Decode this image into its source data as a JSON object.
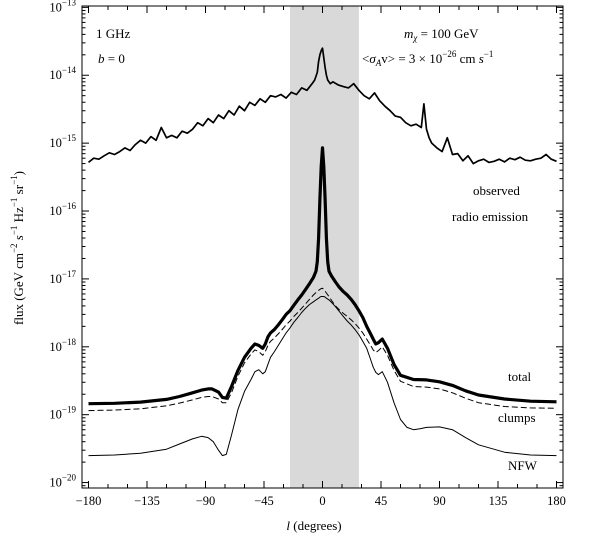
{
  "chart_data": {
    "type": "line",
    "xlabel_var": "l",
    "xlabel_unit": " (degrees)",
    "ylabel_a": "flux  (GeV cm",
    "ylabel_b": " s",
    "ylabel_c": " Hz",
    "ylabel_d": " sr",
    "ylabel_e": ")",
    "ylabel_sup": "−2",
    "ylabel_sup1": "−1",
    "xlim": [
      -185,
      185
    ],
    "ylim_log10": [
      -20.08,
      -12.98
    ],
    "yscale": "log",
    "x_ticks": [
      -180,
      -135,
      -90,
      -45,
      0,
      45,
      90,
      135,
      180
    ],
    "x_tick_labels": [
      "−180",
      "−135",
      "−90",
      "−45",
      "0",
      "45",
      "90",
      "135",
      "180"
    ],
    "y_ticks_exp": [
      -20,
      -19,
      -18,
      -17,
      -16,
      -15,
      -14,
      -13
    ],
    "y_tick_base": "10",
    "y_tick_exps": [
      "−20",
      "−19",
      "−18",
      "−17",
      "−16",
      "−15",
      "−14",
      "−13"
    ],
    "shaded_band": [
      -25,
      28
    ],
    "shade_color": "#d9d9d9",
    "annotations": {
      "freq": "1 GHz",
      "b_var": "b",
      "b_val": " = 0",
      "mass_var": "m",
      "mass_sub": "χ",
      "mass_val": " = 100 GeV",
      "sigma_open": "<",
      "sigma_var": "σ",
      "sigma_sub": "A",
      "sigma_v": "v> = 3 × 10",
      "sigma_exp": "−26",
      "sigma_unit": " cm ",
      "sigma_s": "s",
      "sigma_exp2": "−1",
      "observed_1": "observed",
      "observed_2": "radio emission",
      "total": "total",
      "clumps": "clumps",
      "nfw": "NFW"
    },
    "series": [
      {
        "name": "total",
        "style": "thick",
        "x": [
          -180,
          -160,
          -140,
          -120,
          -110,
          -100,
          -93,
          -88,
          -85,
          -80,
          -77,
          -74,
          -70,
          -65,
          -60,
          -55,
          -52,
          -49,
          -46,
          -44,
          -42,
          -40,
          -37,
          -34,
          -31,
          -28,
          -25,
          -22,
          -19,
          -16,
          -13,
          -10,
          -7,
          -5,
          -4,
          -3,
          -2,
          -1,
          0,
          1,
          2,
          3,
          4,
          5,
          7,
          10,
          13,
          16,
          19,
          22,
          25,
          28,
          31,
          34,
          37,
          39,
          41,
          43,
          46,
          50,
          55,
          60,
          70,
          80,
          90,
          100,
          110,
          120,
          140,
          160,
          180
        ],
        "y": [
          1.45e-19,
          1.47e-19,
          1.53e-19,
          1.68e-19,
          1.85e-19,
          2.1e-19,
          2.3e-19,
          2.4e-19,
          2.4e-19,
          2.15e-19,
          1.8e-19,
          1.75e-19,
          2.6e-19,
          4.5e-19,
          7e-19,
          9.5e-19,
          1.1e-18,
          1.05e-18,
          9.5e-19,
          1.1e-18,
          1.4e-18,
          1.6e-18,
          1.8e-18,
          2.1e-18,
          2.5e-18,
          3e-18,
          3.4e-18,
          4.1e-18,
          4.9e-18,
          5.8e-18,
          7e-18,
          8.5e-18,
          1.05e-17,
          1.3e-17,
          1.8e-17,
          4e-17,
          1.5e-16,
          4.5e-16,
          8.5e-16,
          4.5e-16,
          1.5e-16,
          4e-17,
          1.8e-17,
          1.3e-17,
          1.1e-17,
          9e-18,
          7.5e-18,
          6.5e-18,
          5.8e-18,
          5e-18,
          4.2e-18,
          3.4e-18,
          2.7e-18,
          2e-18,
          1.55e-18,
          1.3e-18,
          1.1e-18,
          1.15e-18,
          1.3e-18,
          9.5e-19,
          5.5e-19,
          3.8e-19,
          3.3e-19,
          3.25e-19,
          3.05e-19,
          2.7e-19,
          2.25e-19,
          1.95e-19,
          1.7e-19,
          1.58e-19,
          1.55e-19
        ]
      },
      {
        "name": "clumps",
        "style": "dashed",
        "x": [
          -180,
          -160,
          -140,
          -120,
          -110,
          -100,
          -93,
          -88,
          -85,
          -80,
          -77,
          -74,
          -70,
          -65,
          -60,
          -55,
          -52,
          -49,
          -46,
          -44,
          -42,
          -40,
          -37,
          -34,
          -31,
          -28,
          -25,
          -22,
          -19,
          -16,
          -13,
          -10,
          -7,
          -5,
          -3,
          -1,
          0,
          1,
          3,
          5,
          7,
          10,
          13,
          16,
          19,
          22,
          25,
          28,
          31,
          34,
          37,
          39,
          41,
          43,
          46,
          50,
          55,
          60,
          70,
          80,
          90,
          100,
          110,
          120,
          140,
          160,
          180
        ],
        "y": [
          1.15e-19,
          1.17e-19,
          1.22e-19,
          1.35e-19,
          1.48e-19,
          1.65e-19,
          1.8e-19,
          1.85e-19,
          1.85e-19,
          1.7e-19,
          1.5e-19,
          1.5e-19,
          2.1e-19,
          3.7e-19,
          5.8e-19,
          7.8e-19,
          9e-19,
          8.5e-19,
          7.5e-19,
          8.5e-19,
          1.05e-18,
          1.2e-18,
          1.35e-18,
          1.55e-18,
          1.8e-18,
          2.1e-18,
          2.4e-18,
          2.8e-18,
          3.2e-18,
          3.7e-18,
          4.3e-18,
          5e-18,
          5.8e-18,
          6.3e-18,
          6.8e-18,
          7.2e-18,
          7.3e-18,
          7e-18,
          6.2e-18,
          5.5e-18,
          4.8e-18,
          4e-18,
          3.5e-18,
          3.1e-18,
          2.8e-18,
          2.5e-18,
          2.2e-18,
          1.9e-18,
          1.6e-18,
          1.3e-18,
          1.05e-18,
          9e-19,
          8.2e-19,
          8.8e-19,
          1e-18,
          7.5e-19,
          4.5e-19,
          3.1e-19,
          2.6e-19,
          2.55e-19,
          2.4e-19,
          2.1e-19,
          1.75e-19,
          1.5e-19,
          1.32e-19,
          1.26e-19,
          1.24e-19
        ]
      },
      {
        "name": "NFW",
        "style": "thin",
        "x": [
          -180,
          -160,
          -140,
          -120,
          -110,
          -100,
          -93,
          -88,
          -84,
          -80,
          -77,
          -74,
          -70,
          -65,
          -60,
          -55,
          -52,
          -49,
          -46,
          -44,
          -42,
          -40,
          -37,
          -34,
          -31,
          -28,
          -25,
          -22,
          -19,
          -16,
          -13,
          -10,
          -7,
          -5,
          -3,
          -2,
          -1,
          0,
          1,
          2,
          3,
          5,
          7,
          10,
          13,
          16,
          19,
          22,
          25,
          28,
          31,
          34,
          37,
          39,
          41,
          43,
          46,
          50,
          55,
          60,
          65,
          70,
          75,
          80,
          90,
          100,
          110,
          120,
          140,
          160,
          180
        ],
        "y": [
          2.5e-20,
          2.55e-20,
          2.7e-20,
          3.1e-20,
          3.7e-20,
          4.4e-20,
          4.8e-20,
          4.6e-20,
          4e-20,
          3e-20,
          2.5e-20,
          2.6e-20,
          5e-20,
          1.2e-19,
          2.2e-19,
          3.3e-19,
          4.3e-19,
          4.6e-19,
          4e-19,
          4.3e-19,
          5.5e-19,
          7e-19,
          8.5e-19,
          1.05e-18,
          1.3e-18,
          1.6e-18,
          1.9e-18,
          2.3e-18,
          2.7e-18,
          3.2e-18,
          3.7e-18,
          4.2e-18,
          4.6e-18,
          4.9e-18,
          5.2e-18,
          5.4e-18,
          5.5e-18,
          5.5e-18,
          5.5e-18,
          5.4e-18,
          5.2e-18,
          4.9e-18,
          4.5e-18,
          3.9e-18,
          3.3e-18,
          2.8e-18,
          2.4e-18,
          2.1e-18,
          1.8e-18,
          1.5e-18,
          1.2e-18,
          9.5e-19,
          6.5e-19,
          5e-19,
          4.2e-19,
          3.9e-19,
          4.3e-19,
          3e-19,
          1.5e-19,
          8.5e-20,
          6.5e-20,
          6e-20,
          6.2e-20,
          6.5e-20,
          6.6e-20,
          6e-20,
          4.6e-20,
          3.6e-20,
          2.8e-20,
          2.55e-20,
          2.5e-20
        ]
      },
      {
        "name": "observed radio emission",
        "style": "noisy",
        "x": [
          -180,
          -176,
          -172,
          -168,
          -164,
          -160,
          -156,
          -152,
          -148,
          -144,
          -140,
          -136,
          -132,
          -128,
          -124,
          -120,
          -116,
          -112,
          -108,
          -104,
          -100,
          -96,
          -92,
          -88,
          -84,
          -80,
          -76,
          -72,
          -68,
          -64,
          -60,
          -56,
          -52,
          -48,
          -44,
          -40,
          -36,
          -32,
          -28,
          -24,
          -20,
          -16,
          -12,
          -8,
          -6,
          -4,
          -3,
          -2,
          -1,
          0,
          1,
          2,
          3,
          4,
          6,
          8,
          12,
          16,
          20,
          24,
          28,
          32,
          36,
          40,
          44,
          48,
          52,
          56,
          60,
          64,
          68,
          72,
          76,
          78,
          80,
          82,
          84,
          88,
          92,
          96,
          100,
          104,
          108,
          112,
          116,
          120,
          124,
          128,
          132,
          136,
          140,
          144,
          148,
          152,
          156,
          160,
          164,
          168,
          172,
          176,
          180
        ],
        "y": [
          5.2e-16,
          6e-16,
          5.8e-16,
          6.5e-16,
          7.2e-16,
          6.8e-16,
          7.5e-16,
          8.5e-16,
          7.8e-16,
          9.5e-16,
          1.1e-15,
          1e-15,
          1.25e-15,
          1.1e-15,
          1.7e-15,
          1.2e-15,
          1.3e-15,
          1.2e-15,
          1.5e-15,
          1.4e-15,
          1.6e-15,
          2e-15,
          1.8e-15,
          2.3e-15,
          2e-15,
          2.6e-15,
          2.3e-15,
          3e-15,
          2.6e-15,
          3.5e-15,
          3e-15,
          4e-15,
          3.6e-15,
          4.5e-15,
          4e-15,
          5e-15,
          4.8e-15,
          5.2e-15,
          4.6e-15,
          5.6e-15,
          5.2e-15,
          6.5e-15,
          6e-15,
          7.5e-15,
          8.5e-15,
          1.1e-14,
          1.6e-14,
          2e-14,
          2.3e-14,
          2.5e-14,
          1.8e-14,
          1.3e-14,
          1e-14,
          8.5e-15,
          7.5e-15,
          8e-15,
          7.2e-15,
          6.8e-15,
          6.5e-15,
          7.5e-15,
          6e-15,
          5e-15,
          4.5e-15,
          5.5e-15,
          4.2e-15,
          3.5e-15,
          3e-15,
          2.5e-15,
          2.4e-15,
          2e-15,
          1.8e-15,
          1.9e-15,
          1.7e-15,
          3.8e-15,
          1.6e-15,
          1.2e-15,
          1e-15,
          8.5e-16,
          7.5e-16,
          1.2e-15,
          6.8e-16,
          7e-16,
          5.5e-16,
          6.5e-16,
          5e-16,
          5.5e-16,
          5.8e-16,
          5.2e-16,
          5.4e-16,
          5.8e-16,
          5.3e-16,
          6e-16,
          5.7e-16,
          6.2e-16,
          5.6e-16,
          5.5e-16,
          5.8e-16,
          6e-16,
          6.8e-16,
          5.8e-16,
          5.4e-16
        ]
      }
    ]
  }
}
